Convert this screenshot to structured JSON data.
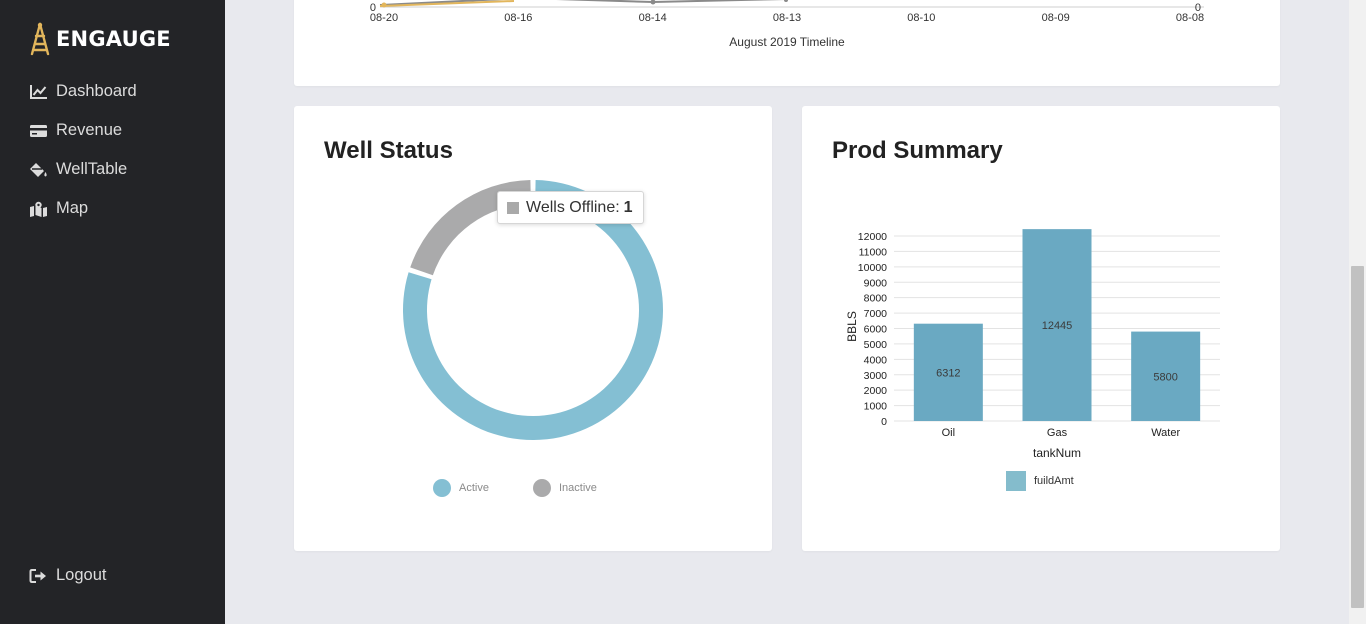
{
  "brand": {
    "name": "ENGAUGE",
    "accent": "#e2b65c"
  },
  "sidebar": {
    "items": [
      {
        "label": "Dashboard",
        "icon": "line-chart-icon"
      },
      {
        "label": "Revenue",
        "icon": "credit-card-icon"
      },
      {
        "label": "WellTable",
        "icon": "fill-drip-icon"
      },
      {
        "label": "Map",
        "icon": "map-marked-icon"
      }
    ],
    "logout": {
      "label": "Logout",
      "icon": "sign-out-icon"
    }
  },
  "timeline": {
    "ticks": [
      "08-20",
      "08-16",
      "08-14",
      "08-13",
      "08-10",
      "08-09",
      "08-08"
    ],
    "left_value": "0",
    "right_value": "0",
    "axis_title": "August 2019 Timeline"
  },
  "well_status": {
    "title": "Well Status",
    "tooltip": {
      "label": "Wells Offline:",
      "value": "1"
    },
    "legend": [
      {
        "label": "Active",
        "color": "#84bfd3"
      },
      {
        "label": "Inactive",
        "color": "#aaaaab"
      }
    ],
    "chart_data": {
      "type": "pie",
      "categories": [
        "Active",
        "Inactive"
      ],
      "values": [
        4,
        1
      ],
      "legend": "bottom"
    }
  },
  "prod_summary": {
    "title": "Prod Summary",
    "legend_label": "fuildAmt",
    "chart_data": {
      "type": "bar",
      "categories": [
        "Oil",
        "Gas",
        "Water"
      ],
      "values": [
        6312,
        12445,
        5800
      ],
      "xlabel": "tankNum",
      "ylabel": "BBLS",
      "ylim": [
        0,
        12000
      ],
      "yticks": [
        0,
        1000,
        2000,
        3000,
        4000,
        5000,
        6000,
        7000,
        8000,
        9000,
        10000,
        11000,
        12000
      ],
      "color": "#6aa9c2",
      "grid": true,
      "legend": "bottom"
    }
  }
}
